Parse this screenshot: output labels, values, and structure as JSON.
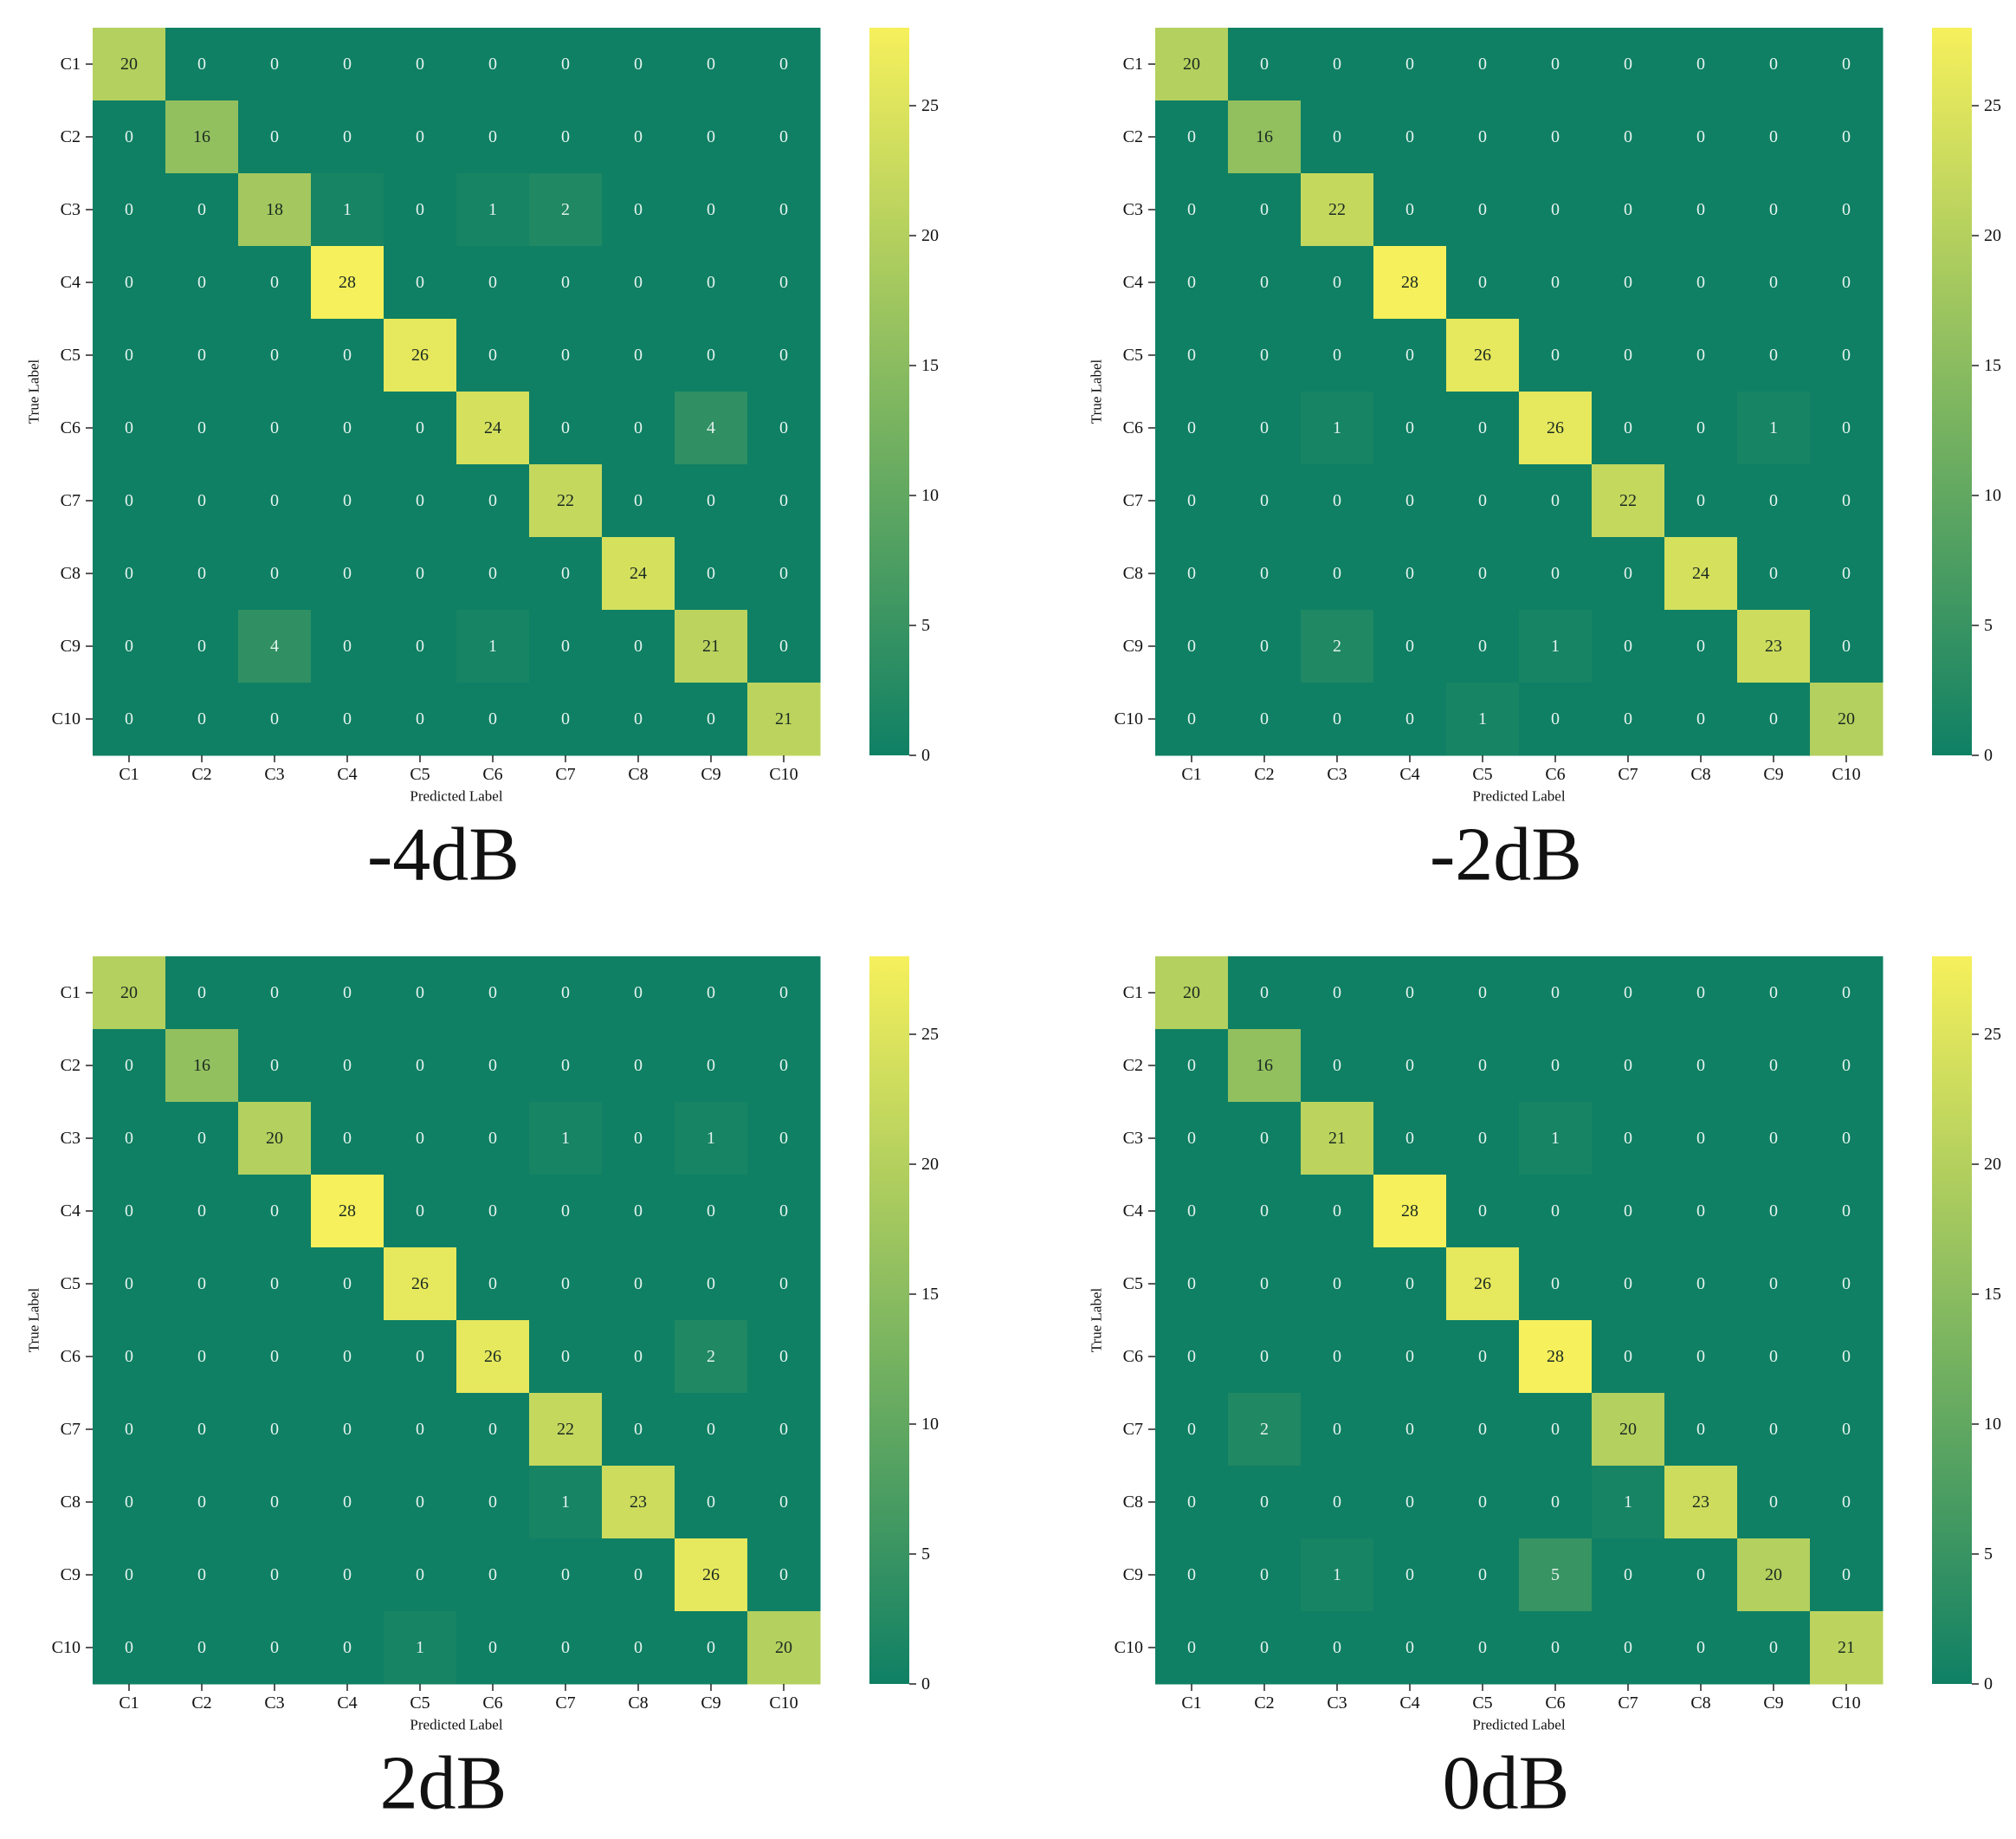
{
  "figure": {
    "xlabel": "Predicted Label",
    "ylabel": "True Label",
    "colormap": {
      "low": "#0f8064",
      "high": "#f6f05c",
      "vmin": 0,
      "vmax": 28
    },
    "colorbar_ticks": [
      0,
      5,
      10,
      15,
      20,
      25
    ],
    "text_color_light": "#e6f2ee",
    "text_color_dark": "#1a2a22"
  },
  "chart_data": [
    {
      "type": "heatmap",
      "title": "-4dB",
      "xlabel": "Predicted Label",
      "ylabel": "True Label",
      "x_categories": [
        "C1",
        "C2",
        "C3",
        "C4",
        "C5",
        "C6",
        "C7",
        "C8",
        "C9",
        "C10"
      ],
      "y_categories": [
        "C1",
        "C2",
        "C3",
        "C4",
        "C5",
        "C6",
        "C7",
        "C8",
        "C9",
        "C10"
      ],
      "colorbar_range": [
        0,
        28
      ],
      "values": [
        [
          20,
          0,
          0,
          0,
          0,
          0,
          0,
          0,
          0,
          0
        ],
        [
          0,
          16,
          0,
          0,
          0,
          0,
          0,
          0,
          0,
          0
        ],
        [
          0,
          0,
          18,
          1,
          0,
          1,
          2,
          0,
          0,
          0
        ],
        [
          0,
          0,
          0,
          28,
          0,
          0,
          0,
          0,
          0,
          0
        ],
        [
          0,
          0,
          0,
          0,
          26,
          0,
          0,
          0,
          0,
          0
        ],
        [
          0,
          0,
          0,
          0,
          0,
          24,
          0,
          0,
          4,
          0
        ],
        [
          0,
          0,
          0,
          0,
          0,
          0,
          22,
          0,
          0,
          0
        ],
        [
          0,
          0,
          0,
          0,
          0,
          0,
          0,
          24,
          0,
          0
        ],
        [
          0,
          0,
          4,
          0,
          0,
          1,
          0,
          0,
          21,
          0
        ],
        [
          0,
          0,
          0,
          0,
          0,
          0,
          0,
          0,
          0,
          21
        ]
      ]
    },
    {
      "type": "heatmap",
      "title": "-2dB",
      "xlabel": "Predicted Label",
      "ylabel": "True Label",
      "x_categories": [
        "C1",
        "C2",
        "C3",
        "C4",
        "C5",
        "C6",
        "C7",
        "C8",
        "C9",
        "C10"
      ],
      "y_categories": [
        "C1",
        "C2",
        "C3",
        "C4",
        "C5",
        "C6",
        "C7",
        "C8",
        "C9",
        "C10"
      ],
      "colorbar_range": [
        0,
        28
      ],
      "values": [
        [
          20,
          0,
          0,
          0,
          0,
          0,
          0,
          0,
          0,
          0
        ],
        [
          0,
          16,
          0,
          0,
          0,
          0,
          0,
          0,
          0,
          0
        ],
        [
          0,
          0,
          22,
          0,
          0,
          0,
          0,
          0,
          0,
          0
        ],
        [
          0,
          0,
          0,
          28,
          0,
          0,
          0,
          0,
          0,
          0
        ],
        [
          0,
          0,
          0,
          0,
          26,
          0,
          0,
          0,
          0,
          0
        ],
        [
          0,
          0,
          1,
          0,
          0,
          26,
          0,
          0,
          1,
          0
        ],
        [
          0,
          0,
          0,
          0,
          0,
          0,
          22,
          0,
          0,
          0
        ],
        [
          0,
          0,
          0,
          0,
          0,
          0,
          0,
          24,
          0,
          0
        ],
        [
          0,
          0,
          2,
          0,
          0,
          1,
          0,
          0,
          23,
          0
        ],
        [
          0,
          0,
          0,
          0,
          1,
          0,
          0,
          0,
          0,
          20
        ]
      ]
    },
    {
      "type": "heatmap",
      "title": "2dB",
      "xlabel": "Predicted Label",
      "ylabel": "True Label",
      "x_categories": [
        "C1",
        "C2",
        "C3",
        "C4",
        "C5",
        "C6",
        "C7",
        "C8",
        "C9",
        "C10"
      ],
      "y_categories": [
        "C1",
        "C2",
        "C3",
        "C4",
        "C5",
        "C6",
        "C7",
        "C8",
        "C9",
        "C10"
      ],
      "colorbar_range": [
        0,
        28
      ],
      "values": [
        [
          20,
          0,
          0,
          0,
          0,
          0,
          0,
          0,
          0,
          0
        ],
        [
          0,
          16,
          0,
          0,
          0,
          0,
          0,
          0,
          0,
          0
        ],
        [
          0,
          0,
          20,
          0,
          0,
          0,
          1,
          0,
          1,
          0
        ],
        [
          0,
          0,
          0,
          28,
          0,
          0,
          0,
          0,
          0,
          0
        ],
        [
          0,
          0,
          0,
          0,
          26,
          0,
          0,
          0,
          0,
          0
        ],
        [
          0,
          0,
          0,
          0,
          0,
          26,
          0,
          0,
          2,
          0
        ],
        [
          0,
          0,
          0,
          0,
          0,
          0,
          22,
          0,
          0,
          0
        ],
        [
          0,
          0,
          0,
          0,
          0,
          0,
          1,
          23,
          0,
          0
        ],
        [
          0,
          0,
          0,
          0,
          0,
          0,
          0,
          0,
          26,
          0
        ],
        [
          0,
          0,
          0,
          0,
          1,
          0,
          0,
          0,
          0,
          20
        ]
      ]
    },
    {
      "type": "heatmap",
      "title": "0dB",
      "xlabel": "Predicted Label",
      "ylabel": "True Label",
      "x_categories": [
        "C1",
        "C2",
        "C3",
        "C4",
        "C5",
        "C6",
        "C7",
        "C8",
        "C9",
        "C10"
      ],
      "y_categories": [
        "C1",
        "C2",
        "C3",
        "C4",
        "C5",
        "C6",
        "C7",
        "C8",
        "C9",
        "C10"
      ],
      "colorbar_range": [
        0,
        28
      ],
      "values": [
        [
          20,
          0,
          0,
          0,
          0,
          0,
          0,
          0,
          0,
          0
        ],
        [
          0,
          16,
          0,
          0,
          0,
          0,
          0,
          0,
          0,
          0
        ],
        [
          0,
          0,
          21,
          0,
          0,
          1,
          0,
          0,
          0,
          0
        ],
        [
          0,
          0,
          0,
          28,
          0,
          0,
          0,
          0,
          0,
          0
        ],
        [
          0,
          0,
          0,
          0,
          26,
          0,
          0,
          0,
          0,
          0
        ],
        [
          0,
          0,
          0,
          0,
          0,
          28,
          0,
          0,
          0,
          0
        ],
        [
          0,
          2,
          0,
          0,
          0,
          0,
          20,
          0,
          0,
          0
        ],
        [
          0,
          0,
          0,
          0,
          0,
          0,
          1,
          23,
          0,
          0
        ],
        [
          0,
          0,
          1,
          0,
          0,
          5,
          0,
          0,
          20,
          0
        ],
        [
          0,
          0,
          0,
          0,
          0,
          0,
          0,
          0,
          0,
          21
        ]
      ]
    }
  ]
}
